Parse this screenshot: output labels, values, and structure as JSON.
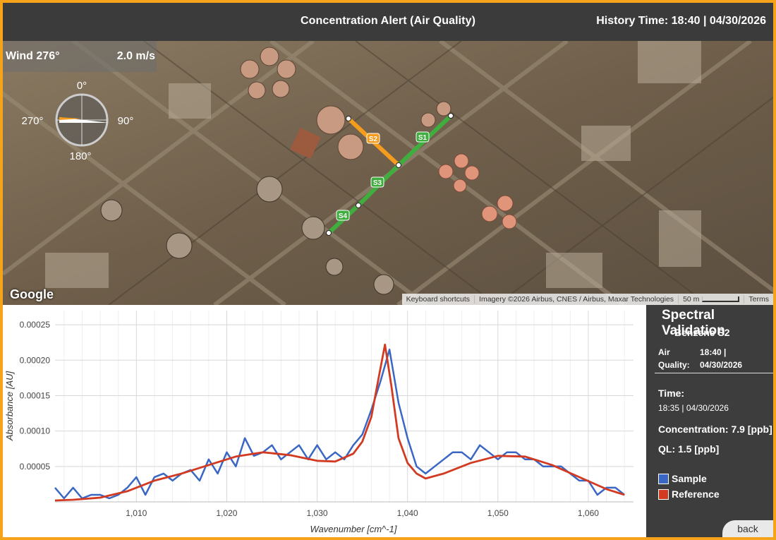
{
  "header": {
    "title": "Concentration Alert (Air Quality)",
    "history": "History Time: 18:40 | 04/30/2026"
  },
  "map": {
    "wind_label": "Wind 276°",
    "wind_speed": "2.0 m/s",
    "compass": {
      "north": "0°",
      "east": "90°",
      "south": "180°",
      "west": "270°",
      "direction_deg": 276
    },
    "segments": [
      {
        "label": "S1",
        "color": "#3fae3f"
      },
      {
        "label": "S2",
        "color": "#f39c1d"
      },
      {
        "label": "S3",
        "color": "#3fae3f"
      },
      {
        "label": "S4",
        "color": "#3fae3f"
      }
    ],
    "logo": "Google",
    "footer": {
      "shortcuts": "Keyboard shortcuts",
      "imagery": "Imagery ©2026 Airbus, CNES / Airbus, Maxar Technologies",
      "scale": "50 m",
      "terms": "Terms"
    }
  },
  "chart_data": {
    "type": "line",
    "xlabel": "Wavenumber [cm^-1]",
    "ylabel": "Absorbance [AU]",
    "xlim": [
      1001,
      1065
    ],
    "ylim": [
      0,
      0.00027
    ],
    "x_ticks": [
      "1,010",
      "1,020",
      "1,030",
      "1,040",
      "1,050",
      "1,060"
    ],
    "y_ticks": [
      "0.00005",
      "0.00010",
      "0.00015",
      "0.00020",
      "0.00025"
    ],
    "series": [
      {
        "name": "Sample",
        "color": "#3a66c4",
        "x": [
          1001,
          1002,
          1003,
          1004,
          1005,
          1006,
          1007,
          1008,
          1009,
          1010,
          1011,
          1012,
          1013,
          1014,
          1015,
          1016,
          1017,
          1018,
          1019,
          1020,
          1021,
          1022,
          1023,
          1024,
          1025,
          1026,
          1027,
          1028,
          1029,
          1030,
          1031,
          1032,
          1033,
          1034,
          1035,
          1036,
          1037,
          1038,
          1039,
          1040,
          1041,
          1042,
          1043,
          1044,
          1045,
          1046,
          1047,
          1048,
          1049,
          1050,
          1051,
          1052,
          1053,
          1054,
          1055,
          1056,
          1057,
          1058,
          1059,
          1060,
          1061,
          1062,
          1063,
          1064
        ],
        "y": [
          2e-05,
          5e-06,
          2e-05,
          5e-06,
          1e-05,
          1e-05,
          5e-06,
          1e-05,
          2e-05,
          3.5e-05,
          1e-05,
          3.5e-05,
          4e-05,
          3e-05,
          4e-05,
          4.5e-05,
          3e-05,
          6e-05,
          4e-05,
          7e-05,
          5e-05,
          9e-05,
          6.5e-05,
          7e-05,
          8e-05,
          6e-05,
          7e-05,
          8e-05,
          6e-05,
          8e-05,
          6e-05,
          7e-05,
          6e-05,
          8e-05,
          9.5e-05,
          0.00013,
          0.00017,
          0.000215,
          0.00014,
          9e-05,
          5e-05,
          4e-05,
          5e-05,
          6e-05,
          7e-05,
          7e-05,
          6e-05,
          8e-05,
          7e-05,
          6e-05,
          7e-05,
          7e-05,
          6e-05,
          6e-05,
          5e-05,
          5e-05,
          5e-05,
          4e-05,
          3e-05,
          3e-05,
          1e-05,
          2e-05,
          2e-05,
          1e-05
        ]
      },
      {
        "name": "Reference",
        "color": "#d23a22",
        "x": [
          1001,
          1003,
          1006,
          1009,
          1012,
          1015,
          1018,
          1021,
          1024,
          1027,
          1030,
          1032,
          1034,
          1035,
          1036,
          1036.8,
          1037.5,
          1038.2,
          1039,
          1040,
          1041,
          1042,
          1044,
          1047,
          1050,
          1053,
          1056,
          1059,
          1062,
          1064
        ],
        "y": [
          2e-06,
          3e-06,
          6e-06,
          1.5e-05,
          3e-05,
          4e-05,
          5.2e-05,
          6.4e-05,
          7e-05,
          6.6e-05,
          5.8e-05,
          5.7e-05,
          6.8e-05,
          8.5e-05,
          0.00012,
          0.000175,
          0.000222,
          0.000165,
          9e-05,
          5.5e-05,
          4e-05,
          3.3e-05,
          4e-05,
          5.5e-05,
          6.5e-05,
          6.4e-05,
          5.2e-05,
          3.5e-05,
          1.8e-05,
          1e-05
        ]
      }
    ]
  },
  "side": {
    "title": "Spectral Validation",
    "subtitle": "Benzene S2",
    "aq_label_1": "Air",
    "aq_label_2": "Quality:",
    "aq_value_1": "18:40 |",
    "aq_value_2": "04/30/2026",
    "time_label": "Time:",
    "time_value": "18:35 | 04/30/2026",
    "concentration": "Concentration: 7.9 [ppb]",
    "ql": "QL: 1.5 [ppb]",
    "legend": [
      {
        "label": "Sample",
        "color": "#3a66c4"
      },
      {
        "label": "Reference",
        "color": "#d23a22"
      }
    ],
    "back": "back"
  }
}
